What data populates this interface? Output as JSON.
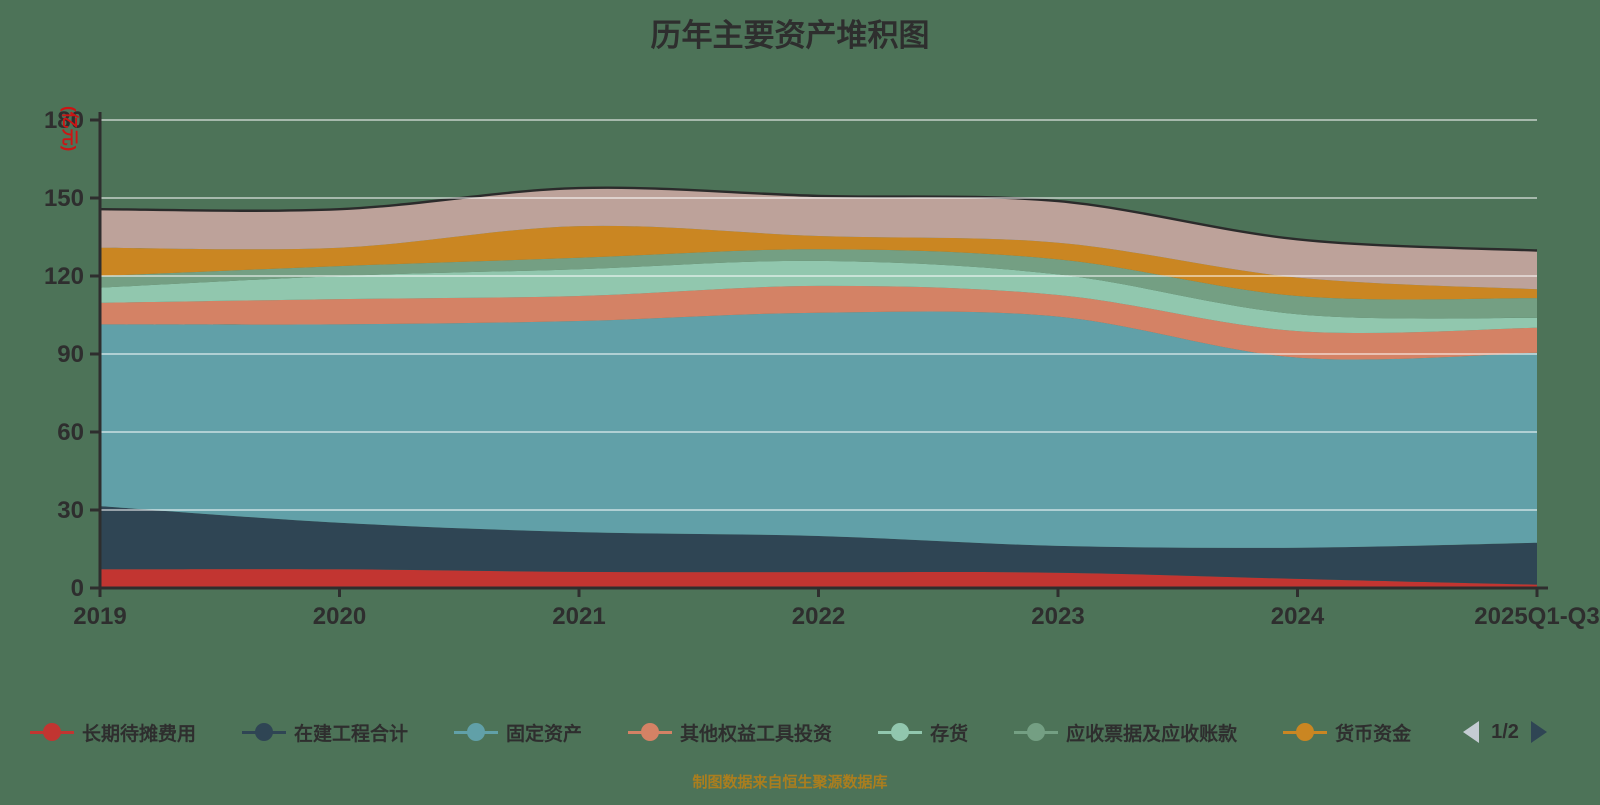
{
  "title": "历年主要资产堆积图",
  "footer": "制图数据来自恒生聚源数据库",
  "colors": {
    "background": "#4d7358",
    "text": "#2e2e2e",
    "axis": "#2e2e2e",
    "gridline": "rgba(255,255,255,0.5)",
    "top_stroke": "#2b2b2b",
    "unit_label": "#cc1414",
    "footer_text": "#ab7e1e",
    "pager_prev": "#c4ccd3",
    "pager_next": "#2f4554"
  },
  "y_axis": {
    "name": "(亿元)",
    "ticks": [
      0,
      30,
      60,
      90,
      120,
      150,
      180
    ]
  },
  "x_axis": {
    "labels": [
      "2019",
      "2020",
      "2021",
      "2022",
      "2023",
      "2024",
      "2025Q1-Q3"
    ]
  },
  "legend": {
    "items": [
      {
        "label": "长期待摊费用",
        "color": "#c23531"
      },
      {
        "label": "在建工程合计",
        "color": "#2f4554"
      },
      {
        "label": "固定资产",
        "color": "#61a0a8"
      },
      {
        "label": "其他权益工具投资",
        "color": "#d48265"
      },
      {
        "label": "存货",
        "color": "#91c7ae"
      },
      {
        "label": "应收票据及应收账款",
        "color": "#749f83"
      },
      {
        "label": "货币资金",
        "color": "#ca8622"
      }
    ],
    "pager": {
      "text": "1/2"
    }
  },
  "chart_data": {
    "type": "area",
    "stacked": true,
    "smooth": true,
    "title": "历年主要资产堆积图",
    "xlabel": "",
    "ylabel": "(亿元)",
    "ylim": [
      0,
      180
    ],
    "y_tick_step": 30,
    "grid": true,
    "legend_position": "bottom",
    "categories": [
      "2019",
      "2020",
      "2021",
      "2022",
      "2023",
      "2024",
      "2025Q1-Q3"
    ],
    "series": [
      {
        "name": "长期待摊费用",
        "color": "#c23531",
        "values": [
          7.2,
          7.2,
          6.2,
          6.1,
          5.9,
          3.5,
          1.3
        ]
      },
      {
        "name": "在建工程合计",
        "color": "#2f4554",
        "values": [
          24.3,
          17.9,
          15.3,
          13.9,
          10.3,
          12.0,
          16.1
        ]
      },
      {
        "name": "固定资产",
        "color": "#61a0a8",
        "values": [
          69.9,
          76.3,
          81.2,
          85.9,
          88.2,
          73.1,
          73.1
        ]
      },
      {
        "name": "其他权益工具投资",
        "color": "#d48265",
        "values": [
          8.3,
          9.7,
          9.6,
          10.3,
          8.3,
          10.2,
          9.6
        ]
      },
      {
        "name": "存货",
        "color": "#91c7ae",
        "values": [
          5.8,
          8.9,
          10.3,
          9.6,
          7.9,
          6.5,
          3.8
        ]
      },
      {
        "name": "应收票据及应收账款",
        "color": "#749f83",
        "values": [
          4.5,
          3.8,
          4.4,
          4.5,
          5.8,
          7.0,
          7.6
        ]
      },
      {
        "name": "货币资金",
        "color": "#ca8622",
        "values": [
          10.9,
          7.1,
          12.2,
          5.1,
          6.4,
          7.1,
          3.4
        ]
      },
      {
        "name": "",
        "color": "#bda29a",
        "values": [
          14.8,
          14.8,
          14.6,
          15.4,
          16.0,
          14.7,
          14.9
        ]
      }
    ]
  }
}
